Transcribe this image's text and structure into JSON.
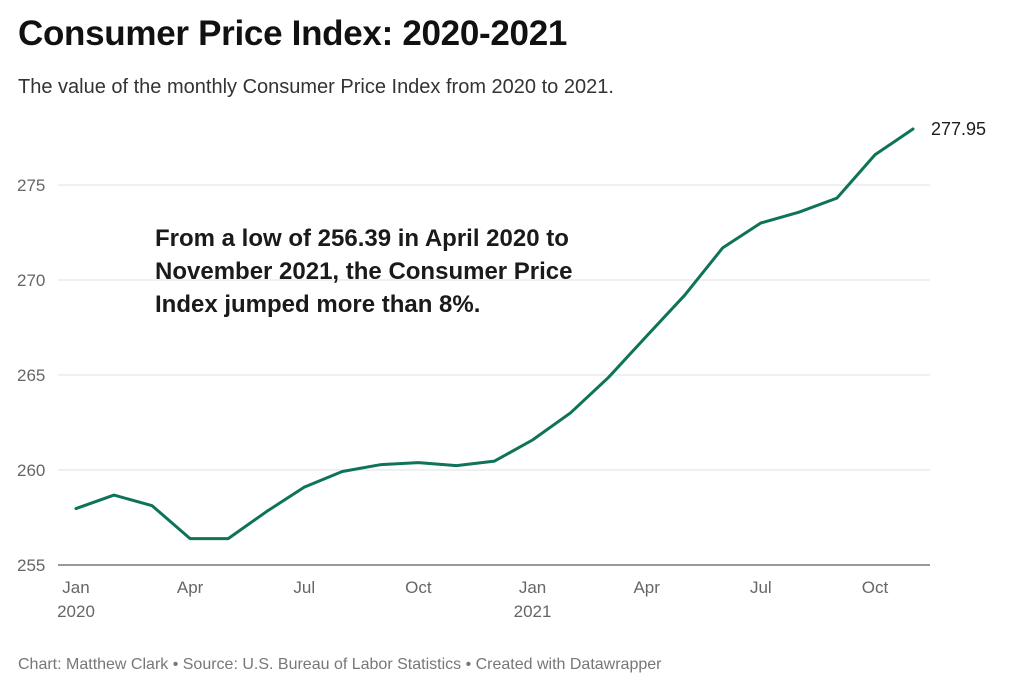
{
  "title": "Consumer Price Index: 2020-2021",
  "subtitle": "The value of the monthly Consumer Price Index from 2020 to 2021.",
  "annotation": "From a low of 256.39 in April 2020 to November 2021, the Consumer Price Index jumped more than 8%.",
  "footer": "Chart: Matthew Clark • Source: U.S. Bureau of Labor Statistics • Created with Datawrapper",
  "colors": {
    "line": "#0e7358",
    "grid": "#e1e1e1",
    "axis": "#333333",
    "tick_text": "#666666"
  },
  "chart_data": {
    "type": "line",
    "title": "Consumer Price Index: 2020-2021",
    "subtitle": "The value of the monthly Consumer Price Index from 2020 to 2021.",
    "xlabel": "",
    "ylabel": "",
    "x": [
      "2020-01",
      "2020-02",
      "2020-03",
      "2020-04",
      "2020-05",
      "2020-06",
      "2020-07",
      "2020-08",
      "2020-09",
      "2020-10",
      "2020-11",
      "2020-12",
      "2021-01",
      "2021-02",
      "2021-03",
      "2021-04",
      "2021-05",
      "2021-06",
      "2021-07",
      "2021-08",
      "2021-09",
      "2021-10",
      "2021-11"
    ],
    "series": [
      {
        "name": "",
        "values": [
          257.97,
          258.68,
          258.12,
          256.39,
          256.39,
          257.8,
          259.1,
          259.92,
          260.28,
          260.39,
          260.23,
          260.47,
          261.58,
          263.01,
          264.88,
          267.05,
          269.2,
          271.7,
          273.0,
          273.57,
          274.31,
          276.59,
          277.95
        ]
      }
    ],
    "end_label": "277.95",
    "ylim": [
      255,
      278
    ],
    "y_ticks": [
      255,
      260,
      265,
      270,
      275
    ],
    "y_tick_labels": [
      "255",
      "260",
      "265",
      "270",
      "275"
    ],
    "x_ticks": [
      {
        "x": "2020-01",
        "label": "Jan",
        "sublabel": "2020"
      },
      {
        "x": "2020-04",
        "label": "Apr",
        "sublabel": ""
      },
      {
        "x": "2020-07",
        "label": "Jul",
        "sublabel": ""
      },
      {
        "x": "2020-10",
        "label": "Oct",
        "sublabel": ""
      },
      {
        "x": "2021-01",
        "label": "Jan",
        "sublabel": "2021"
      },
      {
        "x": "2021-04",
        "label": "Apr",
        "sublabel": ""
      },
      {
        "x": "2021-07",
        "label": "Jul",
        "sublabel": ""
      },
      {
        "x": "2021-10",
        "label": "Oct",
        "sublabel": ""
      }
    ],
    "grid": true,
    "legend": "none"
  }
}
